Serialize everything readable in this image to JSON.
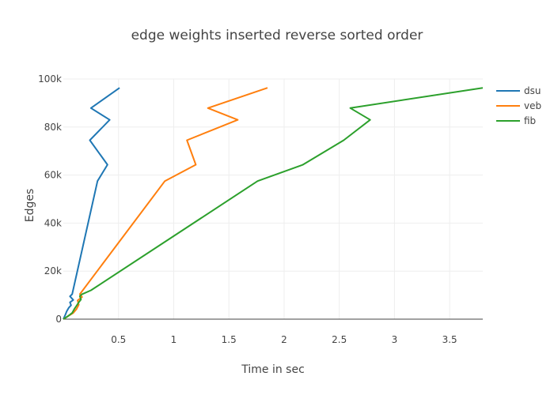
{
  "chart_data": {
    "type": "line",
    "title": "edge weights inserted reverse sorted order",
    "xlabel": "Time in sec",
    "ylabel": "Edges",
    "xlim": [
      0,
      3.8
    ],
    "ylim": [
      0,
      100000
    ],
    "x_ticks": [
      0.5,
      1,
      1.5,
      2,
      2.5,
      3,
      3.5
    ],
    "x_tick_labels": [
      "0.5",
      "1",
      "1.5",
      "2",
      "2.5",
      "3",
      "3.5"
    ],
    "y_ticks": [
      0,
      20000,
      40000,
      60000,
      80000,
      100000
    ],
    "y_tick_labels": [
      "0",
      "20k",
      "40k",
      "60k",
      "80k",
      "100k"
    ],
    "grid": true,
    "legend_position": "top-right",
    "series": [
      {
        "name": "dsu",
        "color": "#1f77b4",
        "x": [
          0.0,
          0.01,
          0.02,
          0.03,
          0.05,
          0.07,
          0.06,
          0.09,
          0.06,
          0.08,
          0.31,
          0.4,
          0.24,
          0.42,
          0.25,
          0.51
        ],
        "y": [
          0,
          1000,
          2000,
          3200,
          4800,
          5800,
          7000,
          8000,
          9500,
          10400,
          57500,
          64300,
          74500,
          83000,
          87900,
          96300
        ]
      },
      {
        "name": "veb",
        "color": "#ff7f0e",
        "x": [
          0.0,
          0.04,
          0.09,
          0.12,
          0.14,
          0.13,
          0.17,
          0.15,
          0.92,
          1.2,
          1.12,
          1.58,
          1.31,
          1.85
        ],
        "y": [
          0,
          1200,
          2600,
          4200,
          6000,
          7800,
          9200,
          10400,
          57500,
          64300,
          74500,
          83000,
          87900,
          96300
        ]
      },
      {
        "name": "fib",
        "color": "#2ca02c",
        "x": [
          0.0,
          0.04,
          0.08,
          0.1,
          0.12,
          0.14,
          0.16,
          0.15,
          0.17,
          0.25,
          1.76,
          2.17,
          2.54,
          2.78,
          2.6,
          3.8
        ],
        "y": [
          0,
          1200,
          2600,
          4200,
          5600,
          7000,
          8200,
          9600,
          10400,
          12000,
          57500,
          64300,
          74500,
          83000,
          87900,
          96300
        ]
      }
    ]
  }
}
